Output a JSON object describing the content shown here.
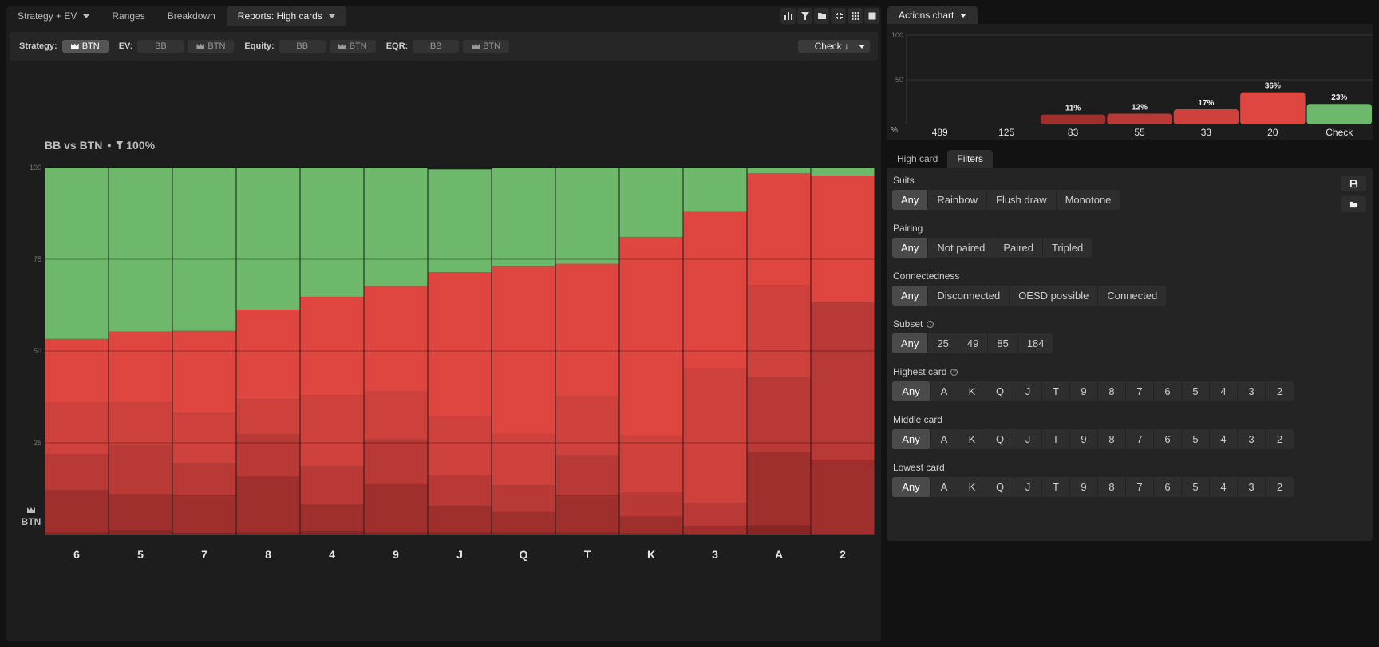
{
  "tabs": [
    {
      "label": "Strategy + EV",
      "dropdown": true,
      "active": false
    },
    {
      "label": "Ranges",
      "dropdown": false,
      "active": false
    },
    {
      "label": "Breakdown",
      "dropdown": false,
      "active": false
    },
    {
      "label": "Reports: High cards",
      "dropdown": true,
      "active": true
    }
  ],
  "toolbar_icons": [
    "bar-chart-icon",
    "filter-icon",
    "folder-icon",
    "collapse-icon",
    "grid-icon",
    "square-icon"
  ],
  "filter_bar": {
    "strategy_label": "Strategy:",
    "strategy_chip": "BTN",
    "ev_label": "EV:",
    "ev_chips": [
      "BB",
      "BTN"
    ],
    "equity_label": "Equity:",
    "equity_chips": [
      "BB",
      "BTN"
    ],
    "eqr_label": "EQR:",
    "eqr_chips": [
      "BB",
      "BTN"
    ],
    "action_select": "Check ↓"
  },
  "matchup": {
    "title": "BB vs BTN",
    "separator": "•",
    "filter_pct": "100%"
  },
  "player_label": "BTN",
  "colors": {
    "check": "#6db86b",
    "bet_20": "#e04640",
    "bet_33": "#cf413c",
    "bet_55": "#b83935",
    "bet_83": "#9f2f2c",
    "bet_125": "#862724",
    "bet_489": "#6e1f1d"
  },
  "chart_data": [
    {
      "type": "bar",
      "title": "",
      "stacked": true,
      "ylim": [
        0,
        100
      ],
      "y_ticks": [
        100,
        75,
        50,
        25
      ],
      "categories": [
        "6",
        "5",
        "7",
        "8",
        "4",
        "9",
        "J",
        "Q",
        "T",
        "K",
        "3",
        "A",
        "2"
      ],
      "series": [
        {
          "key": "bet_489",
          "values": [
            0,
            0,
            0,
            0,
            0,
            0,
            0,
            0,
            0,
            0,
            0,
            0,
            0
          ]
        },
        {
          "key": "bet_125",
          "values": [
            0.5,
            1.2,
            0.4,
            0.5,
            0.8,
            0.5,
            0.5,
            0.5,
            0.5,
            0.3,
            0.2,
            2.5,
            0.2
          ]
        },
        {
          "key": "bet_83",
          "values": [
            11.5,
            9.8,
            10.2,
            15.2,
            7.3,
            13.2,
            7.3,
            5.6,
            10.1,
            4.6,
            2.2,
            20,
            20
          ]
        },
        {
          "key": "bet_55",
          "values": [
            9.8,
            13.2,
            8.8,
            11.6,
            10.5,
            12.2,
            8.3,
            7.3,
            11,
            6.5,
            6.2,
            20.4,
            43.2
          ]
        },
        {
          "key": "bet_33",
          "values": [
            14.1,
            11.8,
            13.6,
            9.5,
            19.3,
            13.1,
            16.2,
            14,
            16.2,
            15.6,
            36.7,
            25,
            0
          ]
        },
        {
          "key": "bet_20",
          "values": [
            17.4,
            19.3,
            22.5,
            24.5,
            26.9,
            28.7,
            39.2,
            45.6,
            36,
            54.1,
            42.6,
            30.5,
            34.4
          ]
        },
        {
          "key": "check",
          "values": [
            46.7,
            44.7,
            44.5,
            38.7,
            35.2,
            32.3,
            28,
            27,
            26.2,
            18.9,
            12.1,
            1.6,
            2.2
          ]
        }
      ]
    },
    {
      "type": "bar",
      "title": "Actions chart",
      "ylim": [
        0,
        100
      ],
      "y_ticks": [
        100,
        50
      ],
      "y_unit": "%",
      "categories": [
        "489",
        "125",
        "83",
        "55",
        "33",
        "20",
        "Check"
      ],
      "values": [
        0,
        0.5,
        11,
        12,
        17,
        36,
        23
      ],
      "value_labels": [
        "",
        "",
        "11%",
        "12%",
        "17%",
        "36%",
        "23%"
      ],
      "colors": [
        "#6e1f1d",
        "#862724",
        "#9f2f2c",
        "#b83935",
        "#cf413c",
        "#e04640",
        "#6db86b"
      ]
    }
  ],
  "actions_tab_label": "Actions chart",
  "lower_tabs": [
    {
      "label": "High card",
      "active": false
    },
    {
      "label": "Filters",
      "active": true
    }
  ],
  "filters": {
    "suits": {
      "label": "Suits",
      "options": [
        "Any",
        "Rainbow",
        "Flush draw",
        "Monotone"
      ],
      "selected": "Any"
    },
    "pairing": {
      "label": "Pairing",
      "options": [
        "Any",
        "Not paired",
        "Paired",
        "Tripled"
      ],
      "selected": "Any"
    },
    "connectedness": {
      "label": "Connectedness",
      "options": [
        "Any",
        "Disconnected",
        "OESD possible",
        "Connected"
      ],
      "selected": "Any"
    },
    "subset": {
      "label": "Subset",
      "options": [
        "Any",
        "25",
        "49",
        "85",
        "184"
      ],
      "selected": "Any"
    },
    "highest_card": {
      "label": "Highest card",
      "options": [
        "Any",
        "A",
        "K",
        "Q",
        "J",
        "T",
        "9",
        "8",
        "7",
        "6",
        "5",
        "4",
        "3",
        "2"
      ],
      "selected": "Any"
    },
    "middle_card": {
      "label": "Middle card",
      "options": [
        "Any",
        "A",
        "K",
        "Q",
        "J",
        "T",
        "9",
        "8",
        "7",
        "6",
        "5",
        "4",
        "3",
        "2"
      ],
      "selected": "Any"
    },
    "lowest_card": {
      "label": "Lowest card",
      "options": [
        "Any",
        "A",
        "K",
        "Q",
        "J",
        "T",
        "9",
        "8",
        "7",
        "6",
        "5",
        "4",
        "3",
        "2"
      ],
      "selected": "Any"
    }
  },
  "side_buttons": [
    "save-icon",
    "folder-icon"
  ]
}
